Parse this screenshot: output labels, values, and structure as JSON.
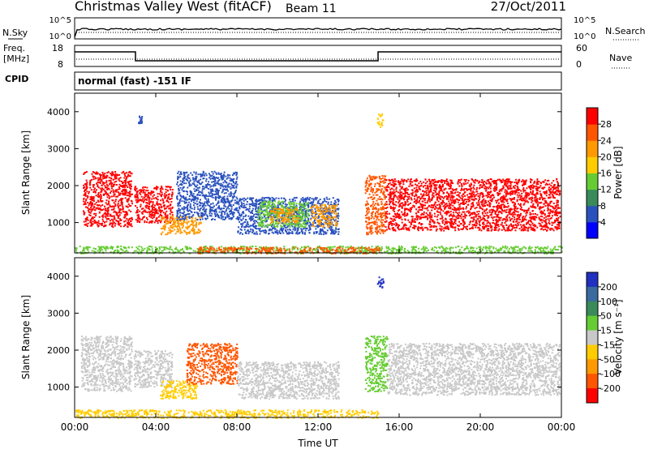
{
  "header": {
    "title": "Christmas Valley West (fitACF)",
    "beam": "Beam 11",
    "date": "27/Oct/2011"
  },
  "control_panels": {
    "nsky": {
      "label": "N.Sky",
      "ticks": [
        "10^5",
        "10^0"
      ],
      "right_ticks": [
        "10^5",
        "10^0"
      ],
      "right_label": "N.Search"
    },
    "freq": {
      "label_line1": "Freq.",
      "label_line2": "[MHz]",
      "ticks": [
        "18",
        "8"
      ],
      "right_ticks": [
        "60",
        "0"
      ],
      "right_label": "Nave"
    },
    "cpid": {
      "label": "CPID",
      "value": "normal (fast) -151 IF"
    }
  },
  "chart_data": [
    {
      "type": "heatmap",
      "name": "Power",
      "xlabel": "",
      "ylabel": "Slant Range [km]",
      "x_ticks": [
        "00:00",
        "04:00",
        "08:00",
        "12:00",
        "16:00",
        "20:00",
        "00:00"
      ],
      "xlim": [
        0,
        24
      ],
      "y_ticks": [
        "1000",
        "2000",
        "3000",
        "4000"
      ],
      "ylim": [
        180,
        4500
      ],
      "colorbar": {
        "label": "Power [dB]",
        "ticks": [
          "4",
          "8",
          "12",
          "16",
          "20",
          "24",
          "28"
        ],
        "colors": [
          "#0000ff",
          "#2a52be",
          "#3a8a5a",
          "#66cc33",
          "#ffcc00",
          "#ff9900",
          "#ff5500",
          "#ff0000"
        ]
      },
      "regions": [
        {
          "t0": 0.4,
          "t1": 2.8,
          "r0": 900,
          "r1": 2400,
          "color": "#ff0000"
        },
        {
          "t0": 2.9,
          "t1": 4.8,
          "r0": 1000,
          "r1": 2000,
          "color": "#ff0000"
        },
        {
          "t0": 4.2,
          "t1": 6.2,
          "r0": 700,
          "r1": 1200,
          "color": "#ff9900"
        },
        {
          "t0": 5.0,
          "t1": 8.0,
          "r0": 1100,
          "r1": 2400,
          "color": "#2a52be"
        },
        {
          "t0": 8.0,
          "t1": 13.0,
          "r0": 700,
          "r1": 1700,
          "color": "#2a52be"
        },
        {
          "t0": 9.0,
          "t1": 11.5,
          "r0": 900,
          "r1": 1600,
          "color": "#66cc33"
        },
        {
          "t0": 9.6,
          "t1": 11.0,
          "r0": 1000,
          "r1": 1400,
          "color": "#ff9900"
        },
        {
          "t0": 11.6,
          "t1": 12.9,
          "r0": 900,
          "r1": 1500,
          "color": "#ff9900"
        },
        {
          "t0": 14.3,
          "t1": 15.3,
          "r0": 700,
          "r1": 2300,
          "color": "#ff5500"
        },
        {
          "t0": 15.3,
          "t1": 23.9,
          "r0": 800,
          "r1": 2200,
          "color": "#ff0000"
        },
        {
          "t0": 0.0,
          "t1": 24.0,
          "r0": 180,
          "r1": 380,
          "color": "#66cc33"
        },
        {
          "t0": 6.0,
          "t1": 15.0,
          "r0": 180,
          "r1": 350,
          "color": "#ff5500"
        },
        {
          "t0": 14.9,
          "t1": 15.2,
          "r0": 3600,
          "r1": 4000,
          "color": "#ffcc00"
        },
        {
          "t0": 3.1,
          "t1": 3.3,
          "r0": 3700,
          "r1": 3900,
          "color": "#2a52be"
        }
      ]
    },
    {
      "type": "heatmap",
      "name": "Velocity",
      "xlabel": "Time UT",
      "ylabel": "Slant Range [km]",
      "x_ticks": [
        "00:00",
        "04:00",
        "08:00",
        "12:00",
        "16:00",
        "20:00",
        "00:00"
      ],
      "xlim": [
        0,
        24
      ],
      "y_ticks": [
        "1000",
        "2000",
        "3000",
        "4000"
      ],
      "ylim": [
        180,
        4500
      ],
      "colorbar": {
        "label": "Velocity [m s⁻¹]",
        "ticks": [
          "200",
          "100",
          "50",
          "15",
          "-15",
          "-50",
          "-100",
          "-200"
        ],
        "colors": [
          "#2030c0",
          "#3a6aa0",
          "#3a8a5a",
          "#66cc33",
          "#c8c8c8",
          "#ffcc00",
          "#ff9900",
          "#ff5500",
          "#ff0000"
        ]
      },
      "regions": [
        {
          "t0": 0.3,
          "t1": 2.8,
          "r0": 900,
          "r1": 2400,
          "color": "#c8c8c8"
        },
        {
          "t0": 2.9,
          "t1": 4.8,
          "r0": 1000,
          "r1": 2000,
          "color": "#c8c8c8"
        },
        {
          "t0": 4.2,
          "t1": 6.0,
          "r0": 700,
          "r1": 1200,
          "color": "#ffcc00"
        },
        {
          "t0": 5.5,
          "t1": 8.0,
          "r0": 1100,
          "r1": 2200,
          "color": "#ff5500"
        },
        {
          "t0": 8.0,
          "t1": 13.0,
          "r0": 700,
          "r1": 1700,
          "color": "#c8c8c8"
        },
        {
          "t0": 0.0,
          "t1": 15.0,
          "r0": 180,
          "r1": 400,
          "color": "#ffcc00"
        },
        {
          "t0": 14.3,
          "t1": 15.4,
          "r0": 900,
          "r1": 2400,
          "color": "#66cc33"
        },
        {
          "t0": 15.4,
          "t1": 23.9,
          "r0": 800,
          "r1": 2200,
          "color": "#c8c8c8"
        },
        {
          "t0": 14.9,
          "t1": 15.2,
          "r0": 3700,
          "r1": 4000,
          "color": "#2030c0"
        }
      ]
    }
  ]
}
